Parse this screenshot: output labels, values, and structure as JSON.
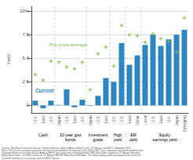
{
  "chart_data": {
    "type": "bar",
    "categories": [
      "U.S.",
      "Euro",
      "U.K.",
      "Japan",
      "U.S.",
      "Euro",
      "U.K.",
      "Japan",
      "U.S.",
      "Euro",
      "U.K.",
      "U.S.",
      "Euro",
      "Dollar",
      "Local",
      "U.S.",
      "Euro",
      "U.K.",
      "Japan",
      "Emerging"
    ],
    "series": [
      {
        "name": "Current",
        "type": "bar",
        "color": "#2e86c1",
        "values": [
          0.5,
          -0.3,
          0.5,
          0.05,
          1.7,
          -0.2,
          0.6,
          -0.05,
          1.0,
          2.9,
          2.5,
          6.6,
          4.3,
          5.3,
          6.4,
          7.5,
          6.3,
          7.0,
          7.5,
          8.0
        ]
      },
      {
        "name": "Pre-crisis average",
        "type": "scatter",
        "marker": "star",
        "color": "#7dc043",
        "values": [
          3.3,
          2.7,
          4.7,
          4.6,
          4.1,
          3.9,
          4.6,
          1.7,
          5.5,
          6.2,
          4.2,
          8.5,
          7.5,
          7.4,
          6.7,
          7.6,
          7.1,
          6.8,
          5.7,
          9.3
        ]
      }
    ],
    "ylabel": "Yield",
    "ylim": [
      -0.8,
      10.5
    ],
    "yticks": [
      0,
      2.5,
      {
        "value": 5,
        "label": "5.0"
      },
      7.5,
      {
        "value": 10,
        "label": "10%"
      }
    ],
    "grid": true,
    "group_labels": [
      "Cash",
      "10-year govt\nbonds",
      "Investment\ngrade",
      "High\nyield",
      "EM\ndebt",
      "Equity\nearnings yield"
    ],
    "source": "Sources: BlackRock Investment Institute, Thomson Reuters, Bank of America Merrill Lynch, J.P. Morgan and MSCI. September 2018.\nNotes: The pre-crisis average is based on the five-year period before the financial crisis (2003-2008). Cash is based on one-month interbank rates.\nCorporate bonds are based on Bank of America Merrill Lynch index data. Emerging market (EM) dollar debt is based on J.P. Morgan Emerging\nMarket Bond Index. Local EM is based on J.P. Morgan GBI-EM Global Diversified Index. The equity earnings yields are based on the inverse of\n12-month forward price-to-earnings ratios for MSCI indexes."
  }
}
